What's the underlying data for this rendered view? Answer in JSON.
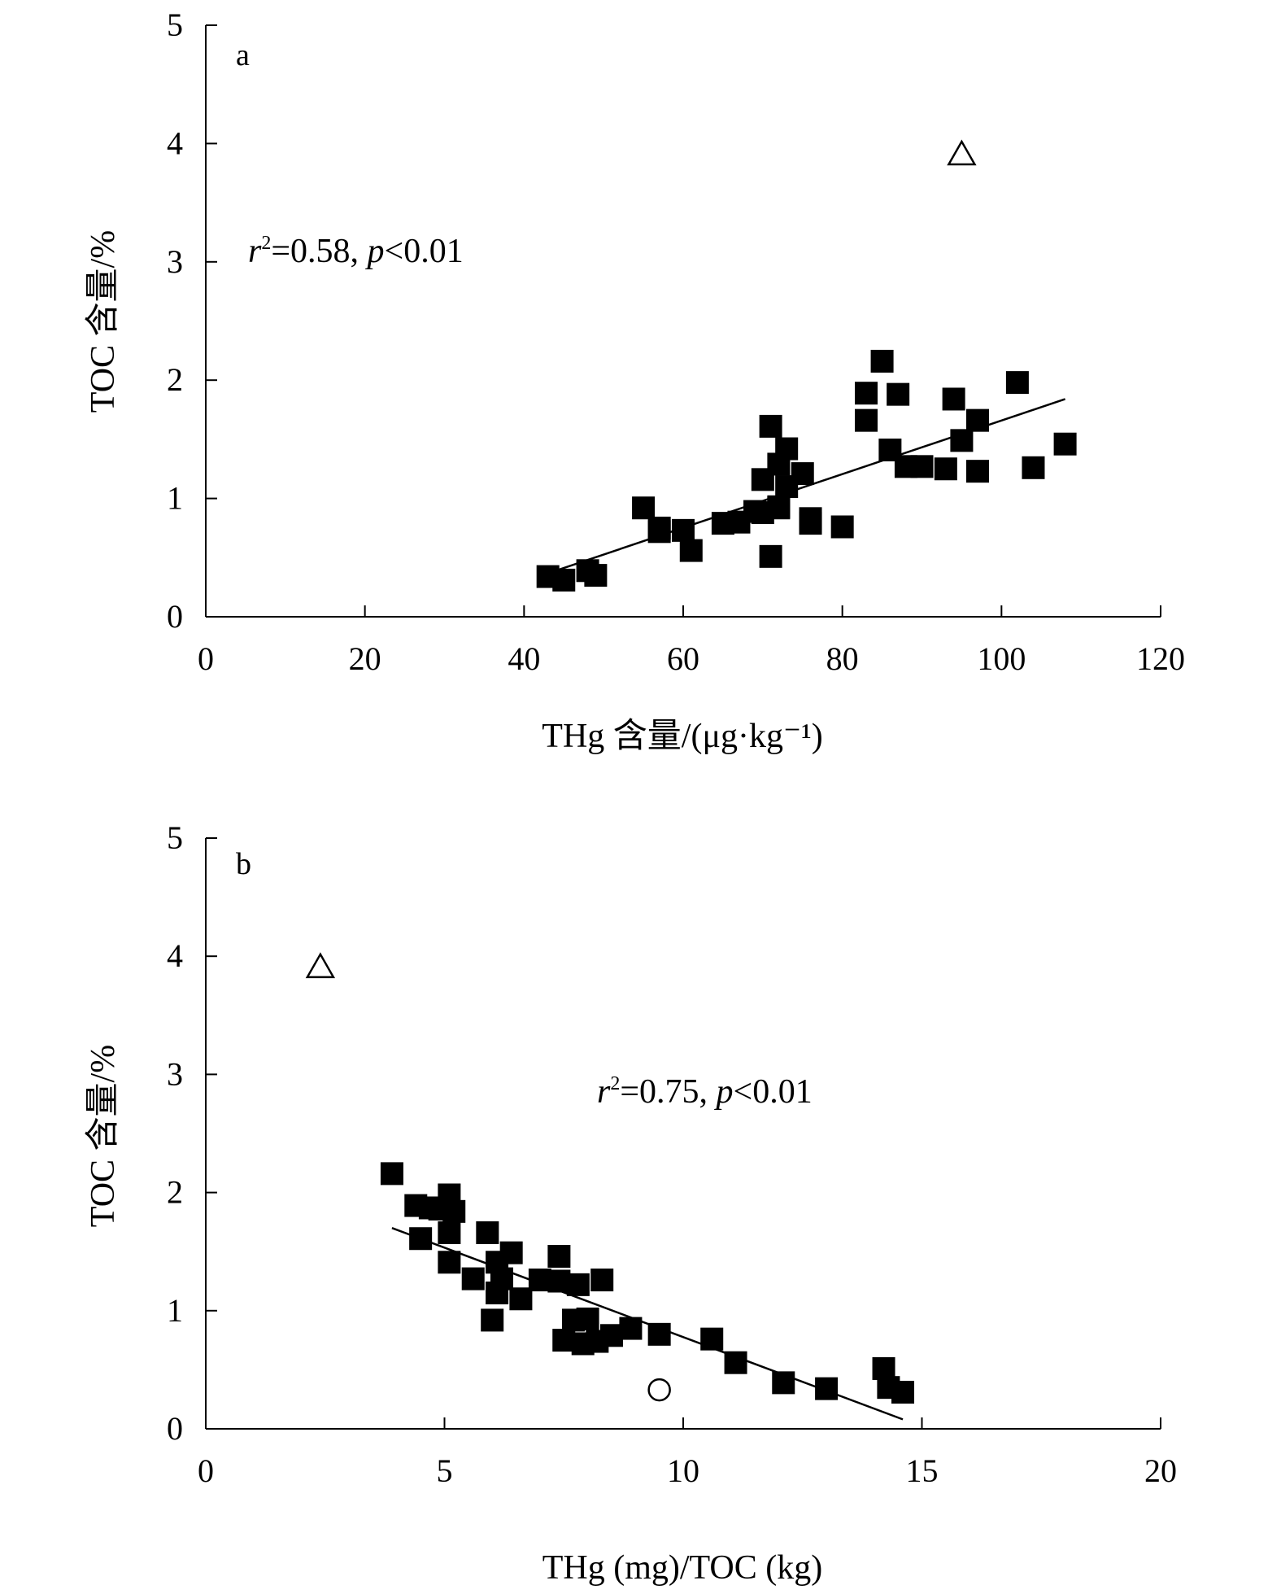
{
  "chart_data": [
    {
      "type": "scatter",
      "panel_label": "a",
      "xlabel": "THg 含量/(μg·kg⁻¹)",
      "ylabel": "TOC 含量/%",
      "xlim": [
        0,
        120
      ],
      "ylim": [
        0,
        5
      ],
      "xticks": [
        "0",
        "20",
        "40",
        "60",
        "80",
        "100",
        "120"
      ],
      "yticks": [
        "0",
        "1",
        "2",
        "3",
        "4",
        "5"
      ],
      "annotation": {
        "r_symbol": "r",
        "sup": "2",
        "r_value": "=0.58, ",
        "p_symbol": "p",
        "p_value": "<0.01"
      },
      "trendline": {
        "x": [
          44,
          108
        ],
        "y": [
          0.39,
          1.84
        ]
      },
      "series": [
        {
          "marker": "filled-square",
          "points": [
            [
              43,
              0.34
            ],
            [
              45,
              0.31
            ],
            [
              48,
              0.39
            ],
            [
              49,
              0.35
            ],
            [
              55,
              0.92
            ],
            [
              57,
              0.75
            ],
            [
              57,
              0.72
            ],
            [
              60,
              0.73
            ],
            [
              61,
              0.56
            ],
            [
              65,
              0.79
            ],
            [
              67,
              0.8
            ],
            [
              69,
              0.89
            ],
            [
              70,
              1.16
            ],
            [
              70,
              0.88
            ],
            [
              71,
              1.61
            ],
            [
              71,
              0.51
            ],
            [
              72,
              1.29
            ],
            [
              72,
              0.92
            ],
            [
              72,
              0.93
            ],
            [
              73,
              1.42
            ],
            [
              73,
              1.1
            ],
            [
              75,
              1.21
            ],
            [
              76,
              0.83
            ],
            [
              76,
              0.79
            ],
            [
              80,
              0.76
            ],
            [
              83,
              1.89
            ],
            [
              83,
              1.66
            ],
            [
              85,
              2.16
            ],
            [
              86,
              1.41
            ],
            [
              87,
              1.88
            ],
            [
              88,
              1.27
            ],
            [
              90,
              1.27
            ],
            [
              93,
              1.25
            ],
            [
              94,
              1.84
            ],
            [
              95,
              1.49
            ],
            [
              97,
              1.66
            ],
            [
              97,
              1.23
            ],
            [
              102,
              1.98
            ],
            [
              104,
              1.26
            ],
            [
              108,
              1.46
            ]
          ]
        },
        {
          "marker": "open-triangle",
          "points": [
            [
              95,
              3.92
            ]
          ]
        }
      ]
    },
    {
      "type": "scatter",
      "panel_label": "b",
      "xlabel": "THg (mg)/TOC (kg)",
      "ylabel": "TOC 含量/%",
      "xlim": [
        0,
        20
      ],
      "ylim": [
        0,
        5
      ],
      "xticks": [
        "0",
        "5",
        "10",
        "15",
        "20"
      ],
      "yticks": [
        "0",
        "1",
        "2",
        "3",
        "4",
        "5"
      ],
      "annotation": {
        "r_symbol": "r",
        "sup": "2",
        "r_value": "=0.75, ",
        "p_symbol": "p",
        "p_value": "<0.01"
      },
      "trendline": {
        "x": [
          3.9,
          14.6
        ],
        "y": [
          1.7,
          0.08
        ]
      },
      "series": [
        {
          "marker": "filled-square",
          "points": [
            [
              3.9,
              2.16
            ],
            [
              4.4,
              1.89
            ],
            [
              4.5,
              1.61
            ],
            [
              4.7,
              1.87
            ],
            [
              4.9,
              1.86
            ],
            [
              5.1,
              1.98
            ],
            [
              5.1,
              1.66
            ],
            [
              5.1,
              1.41
            ],
            [
              5.2,
              1.84
            ],
            [
              5.6,
              1.27
            ],
            [
              5.9,
              1.66
            ],
            [
              6.0,
              0.92
            ],
            [
              6.1,
              1.41
            ],
            [
              6.1,
              1.15
            ],
            [
              6.2,
              1.27
            ],
            [
              6.4,
              1.49
            ],
            [
              6.6,
              1.1
            ],
            [
              7.0,
              1.26
            ],
            [
              7.4,
              1.46
            ],
            [
              7.4,
              1.25
            ],
            [
              7.5,
              0.75
            ],
            [
              7.7,
              0.92
            ],
            [
              7.8,
              1.22
            ],
            [
              7.9,
              0.72
            ],
            [
              8.0,
              0.93
            ],
            [
              8.2,
              0.74
            ],
            [
              8.3,
              1.26
            ],
            [
              8.5,
              0.79
            ],
            [
              8.9,
              0.85
            ],
            [
              9.5,
              0.8
            ],
            [
              10.6,
              0.76
            ],
            [
              11.1,
              0.56
            ],
            [
              12.1,
              0.39
            ],
            [
              13.0,
              0.34
            ],
            [
              14.2,
              0.51
            ],
            [
              14.3,
              0.35
            ],
            [
              14.6,
              0.31
            ]
          ]
        },
        {
          "marker": "open-triangle",
          "points": [
            [
              2.4,
              3.92
            ]
          ]
        },
        {
          "marker": "open-circle",
          "points": [
            [
              9.5,
              0.33
            ]
          ]
        }
      ]
    }
  ]
}
